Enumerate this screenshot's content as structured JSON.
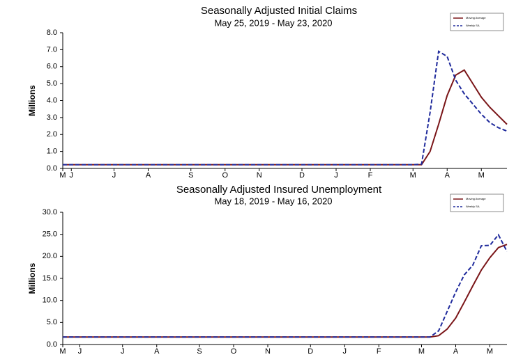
{
  "chart_data": [
    {
      "type": "line",
      "title": "Seasonally Adjusted Initial Claims",
      "subtitle": "May 25, 2019 - May 23, 2020",
      "ylabel": "Millions",
      "categories": [
        "M",
        "J",
        null,
        null,
        null,
        null,
        "J",
        null,
        null,
        null,
        "A",
        null,
        null,
        null,
        null,
        "S",
        null,
        null,
        null,
        "O",
        null,
        null,
        null,
        "N",
        null,
        null,
        null,
        null,
        "D",
        null,
        null,
        null,
        "J",
        null,
        null,
        null,
        "F",
        null,
        null,
        null,
        null,
        "M",
        null,
        null,
        null,
        "A",
        null,
        null,
        null,
        "M",
        null,
        null,
        null
      ],
      "series": [
        {
          "name": "Moving Average",
          "color": "#7a1518",
          "style": "solid",
          "values": [
            0.22,
            0.22,
            0.22,
            0.22,
            0.22,
            0.22,
            0.22,
            0.22,
            0.22,
            0.22,
            0.22,
            0.22,
            0.22,
            0.22,
            0.22,
            0.22,
            0.22,
            0.22,
            0.22,
            0.22,
            0.22,
            0.22,
            0.22,
            0.22,
            0.22,
            0.22,
            0.22,
            0.22,
            0.22,
            0.22,
            0.22,
            0.22,
            0.22,
            0.22,
            0.22,
            0.22,
            0.22,
            0.22,
            0.22,
            0.22,
            0.22,
            0.22,
            0.22,
            1.0,
            2.6,
            4.3,
            5.5,
            5.8,
            5.0,
            4.2,
            3.6,
            3.1,
            2.6
          ]
        },
        {
          "name": "Weekly SA",
          "color": "#1f2a9c",
          "style": "dashed",
          "values": [
            0.22,
            0.22,
            0.22,
            0.22,
            0.22,
            0.22,
            0.22,
            0.22,
            0.22,
            0.22,
            0.22,
            0.22,
            0.22,
            0.22,
            0.22,
            0.22,
            0.22,
            0.22,
            0.22,
            0.22,
            0.22,
            0.22,
            0.22,
            0.22,
            0.22,
            0.22,
            0.22,
            0.22,
            0.22,
            0.22,
            0.22,
            0.22,
            0.22,
            0.22,
            0.22,
            0.22,
            0.22,
            0.22,
            0.22,
            0.22,
            0.22,
            0.22,
            0.25,
            3.3,
            6.9,
            6.6,
            5.2,
            4.4,
            3.8,
            3.2,
            2.7,
            2.4,
            2.2
          ]
        }
      ],
      "ylim": [
        0,
        8
      ],
      "yticks": [
        {
          "value": 0,
          "label": "0.0"
        },
        {
          "value": 1,
          "label": "1.0"
        },
        {
          "value": 2,
          "label": "2.0"
        },
        {
          "value": 3,
          "label": "3.0"
        },
        {
          "value": 4,
          "label": "4.0"
        },
        {
          "value": 5,
          "label": "5.0"
        },
        {
          "value": 6,
          "label": "6.0"
        },
        {
          "value": 7,
          "label": "7.0"
        },
        {
          "value": 8,
          "label": "8.0"
        }
      ],
      "grid": false,
      "legend": "top-right"
    },
    {
      "type": "line",
      "title": "Seasonally Adjusted Insured Unemployment",
      "subtitle": "May 18, 2019 - May 16, 2020",
      "ylabel": "Millions",
      "categories": [
        "M",
        null,
        "J",
        null,
        null,
        null,
        null,
        "J",
        null,
        null,
        null,
        "A",
        null,
        null,
        null,
        null,
        "S",
        null,
        null,
        null,
        "O",
        null,
        null,
        null,
        "N",
        null,
        null,
        null,
        null,
        "D",
        null,
        null,
        null,
        "J",
        null,
        null,
        null,
        "F",
        null,
        null,
        null,
        null,
        "M",
        null,
        null,
        null,
        "A",
        null,
        null,
        null,
        "M",
        null,
        null
      ],
      "series": [
        {
          "name": "Moving Average",
          "color": "#7a1518",
          "style": "solid",
          "values": [
            1.7,
            1.7,
            1.7,
            1.7,
            1.7,
            1.7,
            1.7,
            1.7,
            1.7,
            1.7,
            1.7,
            1.7,
            1.7,
            1.7,
            1.7,
            1.7,
            1.7,
            1.7,
            1.7,
            1.7,
            1.7,
            1.7,
            1.7,
            1.7,
            1.7,
            1.7,
            1.7,
            1.7,
            1.7,
            1.7,
            1.7,
            1.7,
            1.7,
            1.7,
            1.7,
            1.7,
            1.7,
            1.7,
            1.7,
            1.7,
            1.7,
            1.7,
            1.7,
            1.7,
            2.0,
            3.5,
            6.0,
            9.6,
            13.3,
            16.9,
            19.7,
            22.0,
            22.7
          ]
        },
        {
          "name": "Weekly SA",
          "color": "#1f2a9c",
          "style": "dashed",
          "values": [
            1.7,
            1.7,
            1.7,
            1.7,
            1.7,
            1.7,
            1.7,
            1.7,
            1.7,
            1.7,
            1.7,
            1.7,
            1.7,
            1.7,
            1.7,
            1.7,
            1.7,
            1.7,
            1.7,
            1.7,
            1.7,
            1.7,
            1.7,
            1.7,
            1.7,
            1.7,
            1.7,
            1.7,
            1.7,
            1.7,
            1.7,
            1.7,
            1.7,
            1.7,
            1.7,
            1.7,
            1.7,
            1.7,
            1.7,
            1.7,
            1.7,
            1.7,
            1.7,
            1.7,
            3.1,
            7.5,
            11.9,
            15.8,
            18.0,
            22.4,
            22.5,
            24.9,
            21.1
          ]
        }
      ],
      "ylim": [
        0,
        30
      ],
      "yticks": [
        {
          "value": 0,
          "label": "0.0"
        },
        {
          "value": 5,
          "label": "5.0"
        },
        {
          "value": 10,
          "label": "10.0"
        },
        {
          "value": 15,
          "label": "15.0"
        },
        {
          "value": 20,
          "label": "20.0"
        },
        {
          "value": 25,
          "label": "25.0"
        },
        {
          "value": 30,
          "label": "30.0"
        }
      ],
      "grid": false,
      "legend": "top-right"
    }
  ]
}
